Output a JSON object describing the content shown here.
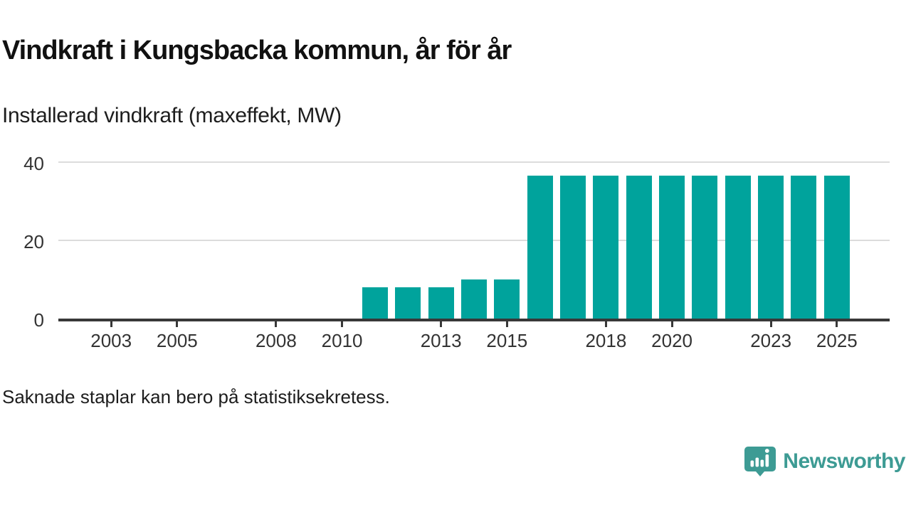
{
  "chart_data": {
    "type": "bar",
    "title": "Vindkraft i Kungsbacka kommun, år för år",
    "subtitle": "Installerad vindkraft (maxeffekt, MW)",
    "ylabel": "MW",
    "x": [
      2011,
      2012,
      2013,
      2014,
      2015,
      2016,
      2017,
      2018,
      2019,
      2020,
      2021,
      2022,
      2023,
      2024,
      2025
    ],
    "values": [
      8,
      8,
      8,
      10,
      10,
      36.6,
      36.6,
      36.6,
      36.6,
      36.6,
      36.6,
      36.6,
      36.6,
      36.6,
      36.6
    ],
    "x_ticks": [
      2003,
      2005,
      2008,
      2010,
      2013,
      2015,
      2018,
      2020,
      2023,
      2025
    ],
    "y_ticks": [
      0,
      20,
      40
    ],
    "x_domain": [
      2001.4,
      2026.6
    ],
    "ylim": [
      0,
      44
    ],
    "grid": "horizontal-only",
    "legend": "none",
    "bar_color": "#00a39c",
    "axis_color": "#383838",
    "grid_color": "#dcdcdc"
  },
  "footer": {
    "note": "Saknade staplar kan bero på statistiksekretess."
  },
  "branding": {
    "name": "Newsworthy",
    "logo_icon": "speech-bubble-bar-chart-icon",
    "color": "#3d9b94"
  }
}
